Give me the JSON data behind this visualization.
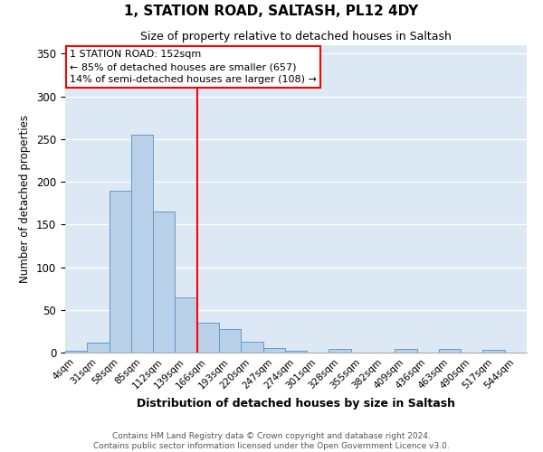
{
  "title": "1, STATION ROAD, SALTASH, PL12 4DY",
  "subtitle": "Size of property relative to detached houses in Saltash",
  "xlabel": "Distribution of detached houses by size in Saltash",
  "ylabel": "Number of detached properties",
  "categories": [
    "4sqm",
    "31sqm",
    "58sqm",
    "85sqm",
    "112sqm",
    "139sqm",
    "166sqm",
    "193sqm",
    "220sqm",
    "247sqm",
    "274sqm",
    "301sqm",
    "328sqm",
    "355sqm",
    "382sqm",
    "409sqm",
    "436sqm",
    "463sqm",
    "490sqm",
    "517sqm",
    "544sqm"
  ],
  "values": [
    2,
    12,
    190,
    255,
    165,
    65,
    35,
    28,
    13,
    5,
    2,
    0,
    4,
    0,
    0,
    4,
    0,
    4,
    0,
    3,
    0
  ],
  "bar_color": "#b8d0e8",
  "bar_edge_color": "#6699cc",
  "background_color": "#dce9f5",
  "red_line_x": 5.5,
  "annotation_line1": "1 STATION ROAD: 152sqm",
  "annotation_line2": "← 85% of detached houses are smaller (657)",
  "annotation_line3": "14% of semi-detached houses are larger (108) →",
  "footer_line1": "Contains HM Land Registry data © Crown copyright and database right 2024.",
  "footer_line2": "Contains public sector information licensed under the Open Government Licence v3.0.",
  "ylim": [
    0,
    360
  ],
  "yticks": [
    0,
    50,
    100,
    150,
    200,
    250,
    300,
    350
  ]
}
